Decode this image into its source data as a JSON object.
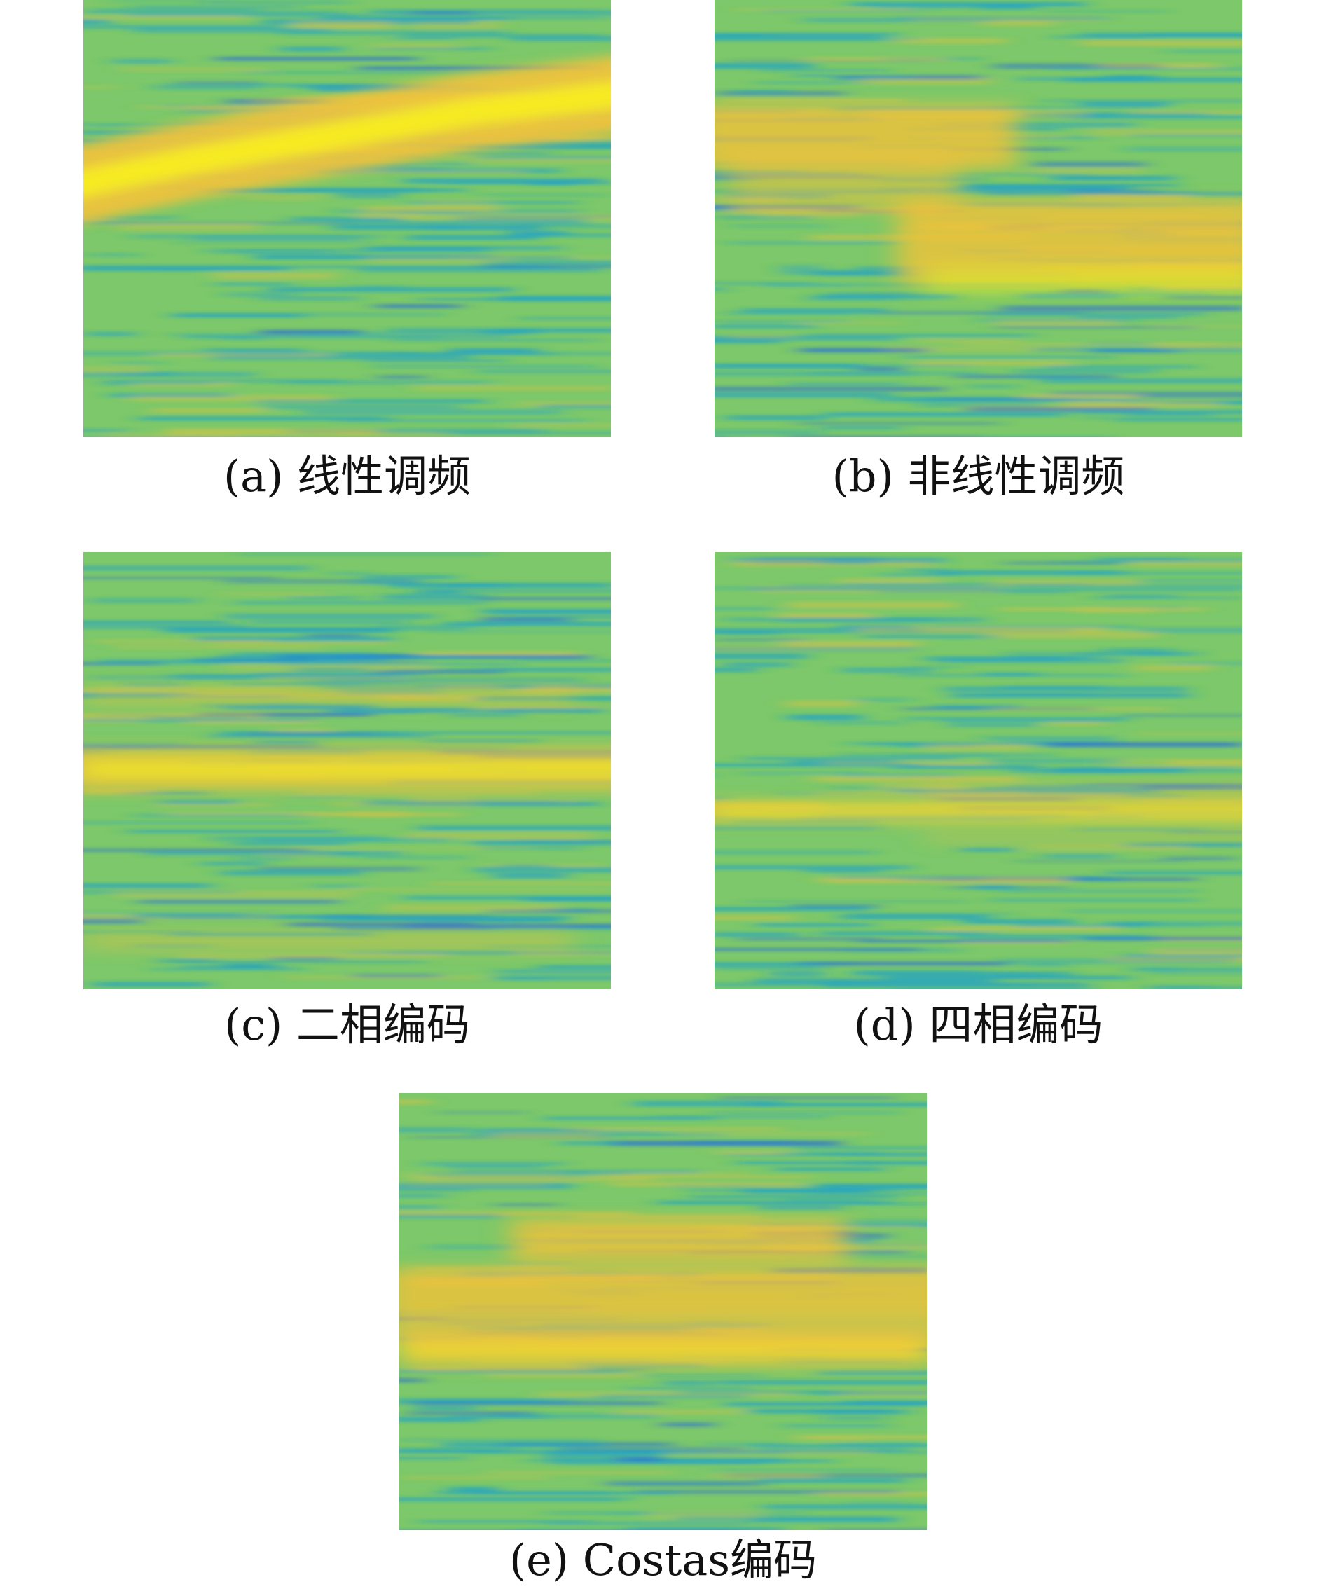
{
  "panels": [
    {
      "id": "a",
      "caption": "(a) 线性调频"
    },
    {
      "id": "b",
      "caption": "(b) 非线性调频"
    },
    {
      "id": "c",
      "caption": "(c) 二相编码"
    },
    {
      "id": "d",
      "caption": "(d) 四相编码"
    },
    {
      "id": "e",
      "caption": "(e) Costas编码"
    }
  ],
  "colors": {
    "background": "#7cc86a",
    "low": "#1fa1c8",
    "deep_low": "#2a6fd6",
    "high": "#f3c23a",
    "peak": "#f9f21d"
  }
}
